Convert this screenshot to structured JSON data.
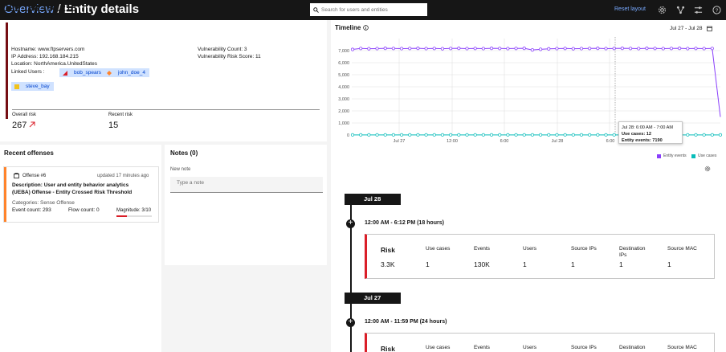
{
  "header": {
    "breadcrumb_link": "Overview",
    "breadcrumb_sep": "/",
    "breadcrumb_current": "Entity details",
    "search_placeholder": "Search for users and entities",
    "reset_layout": "Reset layout",
    "icons": [
      "gear-icon",
      "network-icon",
      "sliders-icon",
      "help-icon"
    ]
  },
  "entity": {
    "ip": "192.168.184.215",
    "domain": "www.ftpservers.com",
    "hostname": "Hostname: www.ftpservers.com",
    "ip_address": "IP Address: 192.168.184.215",
    "location": "Location: NorthAmerica.UnitedStates",
    "linked_users_label": "Linked Users :",
    "linked_users": [
      {
        "name": "bob_spears",
        "icon": "triangle-icon",
        "color": "#da1e28"
      },
      {
        "name": "john_doe_4",
        "icon": "diamond-icon",
        "color": "#ff832b"
      },
      {
        "name": "steve_bay",
        "icon": "square-icon",
        "color": "#f1c21b"
      }
    ],
    "vuln_count": "Vulnerability Count: 3",
    "vuln_score": "Vulnerability Risk Score: 11",
    "overall_risk_label": "Overall risk",
    "overall_risk_value": "267",
    "recent_risk_label": "Recent risk",
    "recent_risk_value": "15"
  },
  "offenses": {
    "title": "Recent offenses",
    "item": {
      "id": "Offense #6",
      "updated": "updated 17 minutes ago",
      "description_line1": "Description: User and entity behavior analytics",
      "description_line2": "(UEBA) Offense - Entity Crossed Risk Threshold",
      "categories": "Categories: Sense Offense",
      "event_count": "Event count: 293",
      "flow_count": "Flow count: 0",
      "magnitude": "Magnitude: 3/10",
      "magnitude_fraction": 0.3
    }
  },
  "notes": {
    "title": "Notes (0)",
    "label": "New note",
    "placeholder": "Type a note"
  },
  "timeline": {
    "title": "Timeline",
    "date_range": "Jul 27 - Jul 28",
    "legend": [
      {
        "name": "Entity events",
        "color": "#8a3ffc"
      },
      {
        "name": "Use cases",
        "color": "#08bdba"
      }
    ],
    "tooltip": {
      "line1": "Jul 28: 6:00 AM - 7:00 AM",
      "line2": "Use cases: 12",
      "line3": "Entity events: 7190"
    },
    "days": [
      {
        "label": "Jul 28",
        "range": "12:00 AM - 6:12 PM (18 hours)",
        "risk_label": "Risk",
        "risk": "3.3K",
        "use_cases_label": "Use cases",
        "use_cases": "1",
        "events_label": "Events",
        "events": "130K",
        "users_label": "Users",
        "users": "1",
        "src_ips_label": "Source IPs",
        "src_ips": "1",
        "dst_ips_label1": "Destination",
        "dst_ips_label2": "IPs",
        "dst_ips": "1",
        "src_mac_label": "Source MAC",
        "src_mac": "1"
      },
      {
        "label": "Jul 27",
        "range": "12:00 AM - 11:59 PM (24 hours)",
        "risk_label": "Risk",
        "use_cases_label": "Use cases",
        "events_label": "Events",
        "users_label": "Users",
        "src_ips_label": "Source IPs",
        "dst_ips_label1": "Destination",
        "src_mac_label": "Source MAC"
      }
    ]
  },
  "chart_data": {
    "type": "line",
    "xlabel": "",
    "ylabel": "",
    "ylim": [
      0,
      8000
    ],
    "yticks": [
      "0",
      "1,000",
      "2,000",
      "3,000",
      "4,000",
      "5,000",
      "6,000",
      "7,000"
    ],
    "xticks": [
      "Jul 27",
      "12:00",
      "6:00",
      "Jul 28",
      "12:00",
      "6:00"
    ],
    "grid": true,
    "legend_position": "bottom-right",
    "series": [
      {
        "name": "Entity events",
        "color": "#8a3ffc",
        "values": [
          7100,
          7180,
          7160,
          7170,
          7190,
          7180,
          7170,
          7180,
          7190,
          7170,
          7180,
          7160,
          7180,
          7190,
          7170,
          7180,
          7170,
          7190,
          7180,
          7170,
          7180,
          7190,
          7060,
          7110,
          7150,
          7170,
          7180,
          7160,
          7170,
          7180,
          7190,
          7170,
          7180,
          7190,
          7180,
          7170,
          7190,
          7180,
          7170,
          7180,
          7190,
          7170,
          7180,
          7170,
          7180,
          1500
        ]
      },
      {
        "name": "Use cases",
        "color": "#08bdba",
        "values": [
          12,
          12,
          12,
          12,
          12,
          12,
          12,
          12,
          12,
          12,
          12,
          12,
          12,
          12,
          12,
          12,
          12,
          12,
          12,
          12,
          12,
          12,
          12,
          12,
          12,
          12,
          12,
          12,
          12,
          12,
          12,
          12,
          12,
          12,
          12,
          12,
          12,
          12,
          12,
          12,
          12,
          12,
          12,
          12,
          12,
          12
        ]
      }
    ]
  }
}
